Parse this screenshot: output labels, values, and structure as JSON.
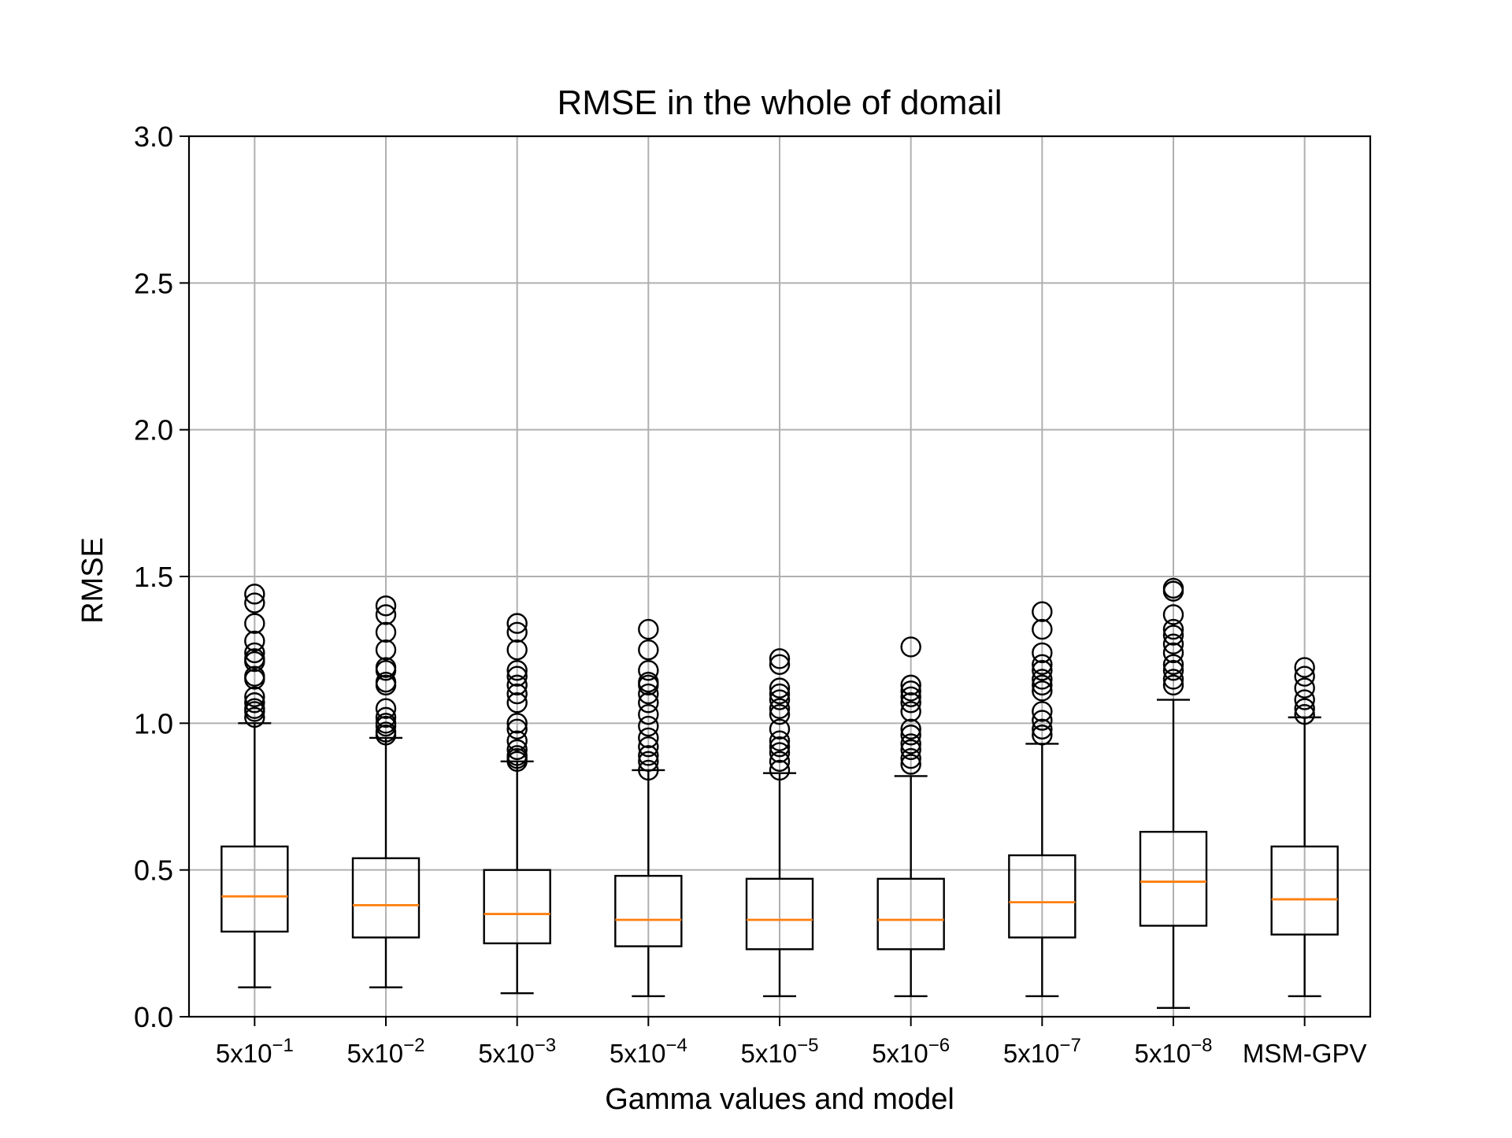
{
  "chart_data": {
    "type": "boxplot",
    "title": "RMSE in the whole of domail",
    "xlabel": "Gamma values and model",
    "ylabel": "RMSE",
    "ylim": [
      0.0,
      3.0
    ],
    "yticks": [
      "0.0",
      "0.5",
      "1.0",
      "1.5",
      "2.0",
      "2.5",
      "3.0"
    ],
    "yticks_values": [
      0.0,
      0.5,
      1.0,
      1.5,
      2.0,
      2.5,
      3.0
    ],
    "grid": true,
    "colors": {
      "box": "#000000",
      "median": "#ff7f0e",
      "grid": "#b0b0b0"
    },
    "categories": [
      {
        "base": "5x10",
        "exp": "−1"
      },
      {
        "base": "5x10",
        "exp": "−2"
      },
      {
        "base": "5x10",
        "exp": "−3"
      },
      {
        "base": "5x10",
        "exp": "−4"
      },
      {
        "base": "5x10",
        "exp": "−5"
      },
      {
        "base": "5x10",
        "exp": "−6"
      },
      {
        "base": "5x10",
        "exp": "−7"
      },
      {
        "base": "5x10",
        "exp": "−8"
      },
      {
        "base": "MSM-GPV",
        "exp": ""
      }
    ],
    "boxes": [
      {
        "whislo": 0.1,
        "q1": 0.29,
        "med": 0.41,
        "q3": 0.58,
        "whishi": 1.0,
        "fliers": [
          1.02,
          1.04,
          1.05,
          1.07,
          1.09,
          1.15,
          1.16,
          1.21,
          1.22,
          1.24,
          1.28,
          1.34,
          1.41,
          1.44
        ]
      },
      {
        "whislo": 0.1,
        "q1": 0.27,
        "med": 0.38,
        "q3": 0.54,
        "whishi": 0.95,
        "fliers": [
          0.96,
          0.97,
          0.99,
          1.0,
          1.02,
          1.05,
          1.13,
          1.14,
          1.18,
          1.19,
          1.25,
          1.31,
          1.37,
          1.4
        ]
      },
      {
        "whislo": 0.08,
        "q1": 0.25,
        "med": 0.35,
        "q3": 0.5,
        "whishi": 0.87,
        "fliers": [
          0.87,
          0.88,
          0.89,
          0.91,
          0.94,
          0.98,
          1.0,
          1.07,
          1.1,
          1.13,
          1.16,
          1.18,
          1.25,
          1.31,
          1.34
        ]
      },
      {
        "whislo": 0.07,
        "q1": 0.24,
        "med": 0.33,
        "q3": 0.48,
        "whishi": 0.84,
        "fliers": [
          0.84,
          0.87,
          0.89,
          0.92,
          0.95,
          0.99,
          1.03,
          1.07,
          1.1,
          1.13,
          1.14,
          1.18,
          1.25,
          1.32
        ]
      },
      {
        "whislo": 0.07,
        "q1": 0.23,
        "med": 0.33,
        "q3": 0.47,
        "whishi": 0.83,
        "fliers": [
          0.84,
          0.87,
          0.9,
          0.92,
          0.94,
          0.98,
          1.03,
          1.05,
          1.08,
          1.1,
          1.12,
          1.2,
          1.22
        ]
      },
      {
        "whislo": 0.07,
        "q1": 0.23,
        "med": 0.33,
        "q3": 0.47,
        "whishi": 0.82,
        "fliers": [
          0.86,
          0.88,
          0.91,
          0.93,
          0.96,
          0.98,
          1.04,
          1.07,
          1.09,
          1.11,
          1.13,
          1.26
        ]
      },
      {
        "whislo": 0.07,
        "q1": 0.27,
        "med": 0.39,
        "q3": 0.55,
        "whishi": 0.93,
        "fliers": [
          0.96,
          0.98,
          1.01,
          1.04,
          1.11,
          1.13,
          1.15,
          1.18,
          1.2,
          1.24,
          1.32,
          1.38
        ]
      },
      {
        "whislo": 0.03,
        "q1": 0.31,
        "med": 0.46,
        "q3": 0.63,
        "whishi": 1.08,
        "fliers": [
          1.13,
          1.15,
          1.18,
          1.2,
          1.24,
          1.27,
          1.3,
          1.32,
          1.37,
          1.45,
          1.46
        ]
      },
      {
        "whislo": 0.07,
        "q1": 0.28,
        "med": 0.4,
        "q3": 0.58,
        "whishi": 1.02,
        "fliers": [
          1.03,
          1.05,
          1.08,
          1.12,
          1.16,
          1.19
        ]
      }
    ]
  }
}
